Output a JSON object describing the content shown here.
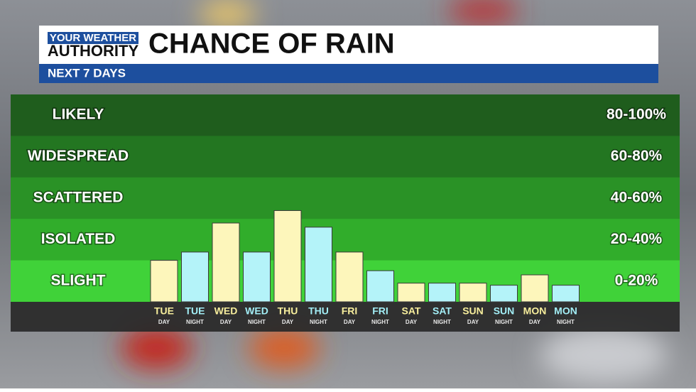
{
  "logo": {
    "top": "YOUR WEATHER",
    "bottom": "AUTHORITY"
  },
  "chart_data": {
    "type": "bar",
    "title": "CHANCE OF RAIN",
    "subtitle": "NEXT 7 DAYS",
    "bands": [
      {
        "label": "LIKELY",
        "range": "80-100%",
        "color": "#1f5d1d"
      },
      {
        "label": "WIDESPREAD",
        "range": "60-80%",
        "color": "#237621"
      },
      {
        "label": "SCATTERED",
        "range": "40-60%",
        "color": "#2a9226"
      },
      {
        "label": "ISOLATED",
        "range": "20-40%",
        "color": "#31ad2b"
      },
      {
        "label": "SLIGHT",
        "range": "0-20%",
        "color": "#40d239"
      }
    ],
    "categories": [
      {
        "day": "TUE",
        "period": "DAY"
      },
      {
        "day": "TUE",
        "period": "NIGHT"
      },
      {
        "day": "WED",
        "period": "DAY"
      },
      {
        "day": "WED",
        "period": "NIGHT"
      },
      {
        "day": "THU",
        "period": "DAY"
      },
      {
        "day": "THU",
        "period": "NIGHT"
      },
      {
        "day": "FRI",
        "period": "DAY"
      },
      {
        "day": "FRI",
        "period": "NIGHT"
      },
      {
        "day": "SAT",
        "period": "DAY"
      },
      {
        "day": "SAT",
        "period": "NIGHT"
      },
      {
        "day": "SUN",
        "period": "DAY"
      },
      {
        "day": "SUN",
        "period": "NIGHT"
      },
      {
        "day": "MON",
        "period": "DAY"
      },
      {
        "day": "MON",
        "period": "NIGHT"
      }
    ],
    "values": [
      20,
      24,
      38,
      24,
      44,
      36,
      24,
      15,
      9,
      9,
      9,
      8,
      13,
      8
    ],
    "colors": [
      "#fdf6bb",
      "#b4f3f9",
      "#fdf6bb",
      "#b4f3f9",
      "#fdf6bb",
      "#b4f3f9",
      "#fdf6bb",
      "#b4f3f9",
      "#fdf6bb",
      "#b4f3f9",
      "#fdf6bb",
      "#b4f3f9",
      "#fdf6bb",
      "#b4f3f9"
    ],
    "label_colors": [
      "#f7ee9c",
      "#a2eef6",
      "#f7ee9c",
      "#a2eef6",
      "#f7ee9c",
      "#a2eef6",
      "#f7ee9c",
      "#a2eef6",
      "#f7ee9c",
      "#a2eef6",
      "#f7ee9c",
      "#a2eef6",
      "#f7ee9c",
      "#a2eef6"
    ],
    "ylim": [
      0,
      100
    ]
  }
}
